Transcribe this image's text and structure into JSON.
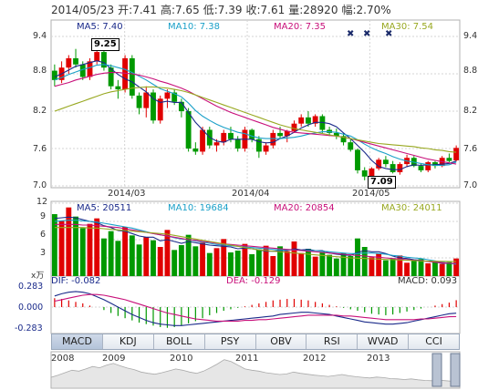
{
  "header": {
    "date": "2014/05/23",
    "open": "开:7.41",
    "high": "高:7.65",
    "low": "低:7.39",
    "close": "收:7.61",
    "volume": "量:28920",
    "change": "幅:2.70%"
  },
  "ma_price": {
    "ma5": "MA5: 7.40",
    "ma10": "MA10: 7.38",
    "ma20": "MA20: 7.35",
    "ma30": "MA30: 7.54"
  },
  "ma_volume": {
    "ma5": "MA5: 20511",
    "ma10": "MA10: 19684",
    "ma20": "MA20: 20854",
    "ma30": "MA30: 24011"
  },
  "macd_labels": {
    "dif": "DIF: -0.082",
    "dea": "DEA: -0.129",
    "macd": "MACD: 0.093"
  },
  "price_axis": {
    "ticks": [
      "9.4",
      "8.8",
      "8.2",
      "7.6",
      "7.0"
    ]
  },
  "volume_axis": {
    "ticks": [
      "12",
      "9",
      "6",
      "3"
    ],
    "unit": "x万"
  },
  "macd_axis": {
    "ticks": [
      "0.283",
      "0.000",
      "-0.283"
    ]
  },
  "date_axis": {
    "ticks": [
      "2014/03",
      "2014/04",
      "2014/05"
    ]
  },
  "price_markers": {
    "high": "9.25",
    "low": "7.09"
  },
  "tabs": [
    "MACD",
    "KDJ",
    "BOLL",
    "PSY",
    "OBV",
    "RSI",
    "WVAD",
    "CCI"
  ],
  "active_tab": "MACD",
  "overview_years": [
    "2008",
    "2009",
    "2010",
    "2011",
    "2012",
    "2013"
  ],
  "colors": {
    "up": "#e00000",
    "down": "#009900",
    "ma5": "#1a2a8a",
    "ma10": "#1aa0c8",
    "ma20": "#c8107a",
    "ma30": "#98a820",
    "grid": "#d5d5d5"
  },
  "chart_data": {
    "type": "candlestick",
    "ohlc": [
      [
        8.85,
        8.95,
        8.6,
        8.7
      ],
      [
        8.7,
        9.0,
        8.65,
        8.9
      ],
      [
        8.9,
        9.1,
        8.8,
        9.05
      ],
      [
        9.05,
        9.2,
        8.9,
        8.95
      ],
      [
        8.95,
        9.0,
        8.7,
        8.75
      ],
      [
        8.75,
        9.05,
        8.7,
        9.0
      ],
      [
        9.0,
        9.25,
        8.95,
        9.15
      ],
      [
        9.15,
        9.2,
        8.85,
        8.9
      ],
      [
        8.9,
        8.95,
        8.55,
        8.6
      ],
      [
        8.6,
        8.7,
        8.4,
        8.55
      ],
      [
        8.55,
        9.1,
        8.5,
        9.05
      ],
      [
        9.05,
        9.1,
        8.4,
        8.45
      ],
      [
        8.45,
        8.5,
        8.15,
        8.25
      ],
      [
        8.25,
        8.6,
        8.1,
        8.5
      ],
      [
        8.5,
        8.55,
        8.0,
        8.05
      ],
      [
        8.05,
        8.45,
        8.0,
        8.4
      ],
      [
        8.4,
        8.55,
        8.25,
        8.5
      ],
      [
        8.5,
        8.55,
        8.3,
        8.35
      ],
      [
        8.35,
        8.4,
        8.1,
        8.2
      ],
      [
        8.2,
        8.25,
        7.55,
        7.6
      ],
      [
        7.6,
        7.7,
        7.5,
        7.55
      ],
      [
        7.55,
        7.95,
        7.5,
        7.9
      ],
      [
        7.9,
        7.95,
        7.6,
        7.65
      ],
      [
        7.65,
        7.75,
        7.55,
        7.7
      ],
      [
        7.7,
        7.9,
        7.65,
        7.85
      ],
      [
        7.85,
        7.95,
        7.7,
        7.75
      ],
      [
        7.75,
        7.8,
        7.55,
        7.6
      ],
      [
        7.6,
        7.95,
        7.55,
        7.9
      ],
      [
        7.9,
        7.92,
        7.7,
        7.75
      ],
      [
        7.75,
        7.8,
        7.45,
        7.55
      ],
      [
        7.55,
        7.7,
        7.5,
        7.65
      ],
      [
        7.65,
        7.9,
        7.6,
        7.85
      ],
      [
        7.85,
        7.95,
        7.75,
        7.8
      ],
      [
        7.8,
        7.9,
        7.7,
        7.88
      ],
      [
        7.88,
        8.05,
        7.85,
        8.0
      ],
      [
        8.0,
        8.15,
        7.95,
        8.1
      ],
      [
        8.1,
        8.2,
        7.95,
        8.0
      ],
      [
        8.0,
        8.15,
        7.95,
        8.12
      ],
      [
        8.12,
        8.15,
        7.85,
        7.9
      ],
      [
        7.9,
        7.95,
        7.8,
        7.85
      ],
      [
        7.85,
        7.92,
        7.75,
        7.8
      ],
      [
        7.8,
        7.85,
        7.65,
        7.7
      ],
      [
        7.7,
        7.75,
        7.55,
        7.58
      ],
      [
        7.58,
        7.6,
        7.2,
        7.25
      ],
      [
        7.25,
        7.3,
        7.09,
        7.15
      ],
      [
        7.15,
        7.3,
        7.1,
        7.28
      ],
      [
        7.28,
        7.45,
        7.25,
        7.42
      ],
      [
        7.42,
        7.48,
        7.3,
        7.35
      ],
      [
        7.35,
        7.4,
        7.2,
        7.22
      ],
      [
        7.22,
        7.38,
        7.18,
        7.35
      ],
      [
        7.35,
        7.5,
        7.3,
        7.45
      ],
      [
        7.45,
        7.48,
        7.3,
        7.32
      ],
      [
        7.32,
        7.36,
        7.22,
        7.25
      ],
      [
        7.25,
        7.4,
        7.22,
        7.38
      ],
      [
        7.38,
        7.4,
        7.28,
        7.32
      ],
      [
        7.32,
        7.48,
        7.3,
        7.45
      ],
      [
        7.45,
        7.52,
        7.38,
        7.4
      ],
      [
        7.41,
        7.65,
        7.39,
        7.61
      ]
    ],
    "ma5": [
      8.75,
      8.8,
      8.86,
      8.92,
      8.95,
      8.98,
      9.01,
      8.98,
      8.88,
      8.79,
      8.72,
      8.67,
      8.59,
      8.51,
      8.4,
      8.34,
      8.36,
      8.34,
      8.34,
      8.18,
      8.02,
      7.9,
      7.78,
      7.72,
      7.7,
      7.75,
      7.75,
      7.75,
      7.75,
      7.71,
      7.69,
      7.7,
      7.76,
      7.8,
      7.86,
      7.93,
      7.98,
      8.02,
      8.02,
      8.0,
      7.95,
      7.85,
      7.76,
      7.65,
      7.54,
      7.41,
      7.31,
      7.28,
      7.26,
      7.26,
      7.31,
      7.34,
      7.33,
      7.34,
      7.34,
      7.35,
      7.36,
      7.4
    ],
    "ma10": [
      8.7,
      8.74,
      8.79,
      8.83,
      8.87,
      8.9,
      8.94,
      8.95,
      8.93,
      8.9,
      8.87,
      8.82,
      8.76,
      8.7,
      8.63,
      8.56,
      8.52,
      8.48,
      8.43,
      8.33,
      8.21,
      8.12,
      8.05,
      7.99,
      7.94,
      7.9,
      7.86,
      7.84,
      7.8,
      7.77,
      7.76,
      7.76,
      7.76,
      7.77,
      7.78,
      7.8,
      7.83,
      7.85,
      7.87,
      7.87,
      7.86,
      7.83,
      7.8,
      7.74,
      7.67,
      7.61,
      7.56,
      7.52,
      7.47,
      7.43,
      7.4,
      7.38,
      7.36,
      7.34,
      7.33,
      7.33,
      7.34,
      7.38
    ],
    "ma20": [
      8.6,
      8.63,
      8.66,
      8.7,
      8.73,
      8.76,
      8.79,
      8.81,
      8.82,
      8.82,
      8.81,
      8.8,
      8.78,
      8.75,
      8.72,
      8.68,
      8.65,
      8.61,
      8.57,
      8.52,
      8.46,
      8.4,
      8.34,
      8.28,
      8.23,
      8.18,
      8.14,
      8.1,
      8.06,
      8.02,
      7.98,
      7.94,
      7.91,
      7.88,
      7.86,
      7.85,
      7.84,
      7.83,
      7.82,
      7.81,
      7.8,
      7.78,
      7.76,
      7.73,
      7.7,
      7.67,
      7.64,
      7.61,
      7.58,
      7.55,
      7.52,
      7.49,
      7.46,
      7.43,
      7.41,
      7.39,
      7.37,
      7.35
    ],
    "ma30": [
      8.2,
      8.24,
      8.28,
      8.32,
      8.36,
      8.4,
      8.44,
      8.48,
      8.51,
      8.53,
      8.55,
      8.57,
      8.58,
      8.59,
      8.59,
      8.58,
      8.57,
      8.55,
      8.53,
      8.5,
      8.46,
      8.42,
      8.38,
      8.34,
      8.3,
      8.26,
      8.22,
      8.18,
      8.14,
      8.1,
      8.06,
      8.02,
      7.98,
      7.95,
      7.92,
      7.9,
      7.88,
      7.86,
      7.84,
      7.82,
      7.8,
      7.78,
      7.76,
      7.74,
      7.72,
      7.7,
      7.68,
      7.67,
      7.66,
      7.65,
      7.64,
      7.63,
      7.61,
      7.6,
      7.58,
      7.57,
      7.55,
      7.54
    ],
    "volume": [
      10.2,
      9.1,
      11.3,
      9.8,
      7.9,
      8.6,
      9.5,
      6.2,
      7.4,
      5.8,
      8.1,
      6.7,
      5.2,
      6.4,
      5.9,
      4.8,
      7.6,
      4.3,
      5.1,
      6.8,
      4.9,
      5.5,
      3.8,
      4.6,
      6.1,
      3.9,
      4.2,
      5.3,
      3.6,
      4.4,
      5.0,
      3.3,
      4.9,
      4.1,
      5.7,
      3.8,
      4.5,
      3.2,
      4.0,
      3.5,
      2.9,
      3.8,
      3.3,
      6.2,
      4.8,
      3.1,
      3.7,
      2.6,
      2.9,
      3.4,
      2.2,
      2.5,
      2.8,
      2.1,
      2.4,
      2.0,
      2.3,
      2.9
    ],
    "vol_ma5": [
      9.5,
      9.6,
      9.7,
      9.6,
      9.3,
      9.0,
      8.8,
      8.3,
      8.0,
      7.5,
      7.4,
      7.0,
      6.6,
      6.4,
      6.4,
      5.8,
      6.0,
      5.7,
      5.4,
      5.7,
      5.5,
      5.3,
      5.1,
      5.0,
      4.9,
      4.8,
      4.5,
      4.6,
      4.5,
      4.3,
      4.1,
      4.1,
      4.2,
      4.2,
      4.5,
      4.3,
      4.4,
      4.2,
      4.2,
      3.8,
      3.6,
      3.5,
      3.4,
      3.9,
      4.2,
      4.0,
      4.0,
      3.7,
      3.3,
      3.0,
      2.9,
      2.7,
      2.6,
      2.4,
      2.3,
      2.1,
      2.1,
      2.05
    ],
    "vol_ma10": [
      9.0,
      9.1,
      9.2,
      9.2,
      9.1,
      9.0,
      8.9,
      8.7,
      8.5,
      8.3,
      8.1,
      7.9,
      7.6,
      7.3,
      7.0,
      6.8,
      6.6,
      6.3,
      6.1,
      6.0,
      5.8,
      5.6,
      5.4,
      5.2,
      5.1,
      5.0,
      4.9,
      4.8,
      4.7,
      4.6,
      4.5,
      4.4,
      4.3,
      4.3,
      4.3,
      4.2,
      4.2,
      4.2,
      4.1,
      4.0,
      3.9,
      3.8,
      3.7,
      3.7,
      3.8,
      3.8,
      3.7,
      3.6,
      3.4,
      3.3,
      3.1,
      3.0,
      2.9,
      2.7,
      2.5,
      2.3,
      2.1,
      1.97
    ],
    "vol_ma20": [
      8.5,
      8.5,
      8.5,
      8.5,
      8.4,
      8.4,
      8.3,
      8.2,
      8.1,
      8.0,
      7.8,
      7.6,
      7.4,
      7.2,
      7.0,
      6.8,
      6.6,
      6.4,
      6.2,
      6.0,
      5.9,
      5.7,
      5.6,
      5.4,
      5.3,
      5.2,
      5.1,
      5.0,
      4.9,
      4.8,
      4.7,
      4.6,
      4.5,
      4.4,
      4.3,
      4.2,
      4.1,
      4.0,
      3.9,
      3.8,
      3.7,
      3.6,
      3.5,
      3.4,
      3.3,
      3.2,
      3.1,
      3.0,
      2.9,
      2.8,
      2.7,
      2.6,
      2.5,
      2.4,
      2.3,
      2.2,
      2.1,
      2.09
    ],
    "vol_ma30": [
      8.0,
      8.0,
      8.0,
      8.0,
      8.0,
      7.9,
      7.9,
      7.8,
      7.7,
      7.6,
      7.5,
      7.4,
      7.3,
      7.2,
      7.1,
      7.0,
      6.9,
      6.7,
      6.5,
      6.3,
      6.1,
      5.9,
      5.7,
      5.5,
      5.3,
      5.1,
      4.9,
      4.7,
      4.5,
      4.3,
      4.2,
      4.1,
      4.0,
      3.9,
      3.8,
      3.7,
      3.6,
      3.5,
      3.4,
      3.3,
      3.2,
      3.1,
      3.0,
      2.95,
      2.9,
      2.85,
      2.8,
      2.75,
      2.7,
      2.65,
      2.6,
      2.55,
      2.5,
      2.48,
      2.45,
      2.43,
      2.41,
      2.4
    ],
    "macd_hist": [
      0.12,
      0.11,
      0.09,
      0.07,
      0.05,
      0.02,
      0.0,
      -0.04,
      -0.08,
      -0.12,
      -0.15,
      -0.18,
      -0.21,
      -0.23,
      -0.25,
      -0.27,
      -0.28,
      -0.27,
      -0.25,
      -0.22,
      -0.19,
      -0.15,
      -0.11,
      -0.08,
      -0.05,
      -0.03,
      -0.01,
      0.01,
      0.03,
      0.05,
      0.07,
      0.09,
      0.1,
      0.11,
      0.11,
      0.1,
      0.09,
      0.07,
      0.05,
      0.03,
      0.01,
      -0.01,
      -0.03,
      -0.05,
      -0.07,
      -0.09,
      -0.1,
      -0.11,
      -0.1,
      -0.08,
      -0.06,
      -0.04,
      -0.02,
      0.0,
      0.02,
      0.04,
      0.06,
      0.093
    ],
    "dif": [
      0.15,
      0.18,
      0.2,
      0.21,
      0.2,
      0.18,
      0.14,
      0.1,
      0.05,
      0.0,
      -0.05,
      -0.1,
      -0.14,
      -0.18,
      -0.21,
      -0.23,
      -0.24,
      -0.25,
      -0.25,
      -0.24,
      -0.23,
      -0.22,
      -0.21,
      -0.2,
      -0.19,
      -0.18,
      -0.17,
      -0.16,
      -0.15,
      -0.14,
      -0.13,
      -0.12,
      -0.1,
      -0.09,
      -0.08,
      -0.07,
      -0.07,
      -0.08,
      -0.09,
      -0.1,
      -0.12,
      -0.14,
      -0.16,
      -0.18,
      -0.2,
      -0.21,
      -0.22,
      -0.23,
      -0.23,
      -0.22,
      -0.21,
      -0.19,
      -0.17,
      -0.15,
      -0.13,
      -0.11,
      -0.09,
      -0.082
    ],
    "dea": [
      0.08,
      0.1,
      0.12,
      0.14,
      0.16,
      0.17,
      0.17,
      0.16,
      0.14,
      0.12,
      0.1,
      0.07,
      0.04,
      0.01,
      -0.02,
      -0.05,
      -0.08,
      -0.1,
      -0.12,
      -0.14,
      -0.16,
      -0.17,
      -0.18,
      -0.19,
      -0.19,
      -0.19,
      -0.19,
      -0.18,
      -0.18,
      -0.17,
      -0.17,
      -0.16,
      -0.15,
      -0.14,
      -0.13,
      -0.12,
      -0.11,
      -0.11,
      -0.11,
      -0.11,
      -0.11,
      -0.12,
      -0.12,
      -0.13,
      -0.14,
      -0.15,
      -0.16,
      -0.17,
      -0.17,
      -0.17,
      -0.17,
      -0.17,
      -0.16,
      -0.16,
      -0.15,
      -0.14,
      -0.13,
      -0.129
    ],
    "overview": [
      0.35,
      0.42,
      0.5,
      0.58,
      0.55,
      0.62,
      0.7,
      0.66,
      0.74,
      0.8,
      0.72,
      0.65,
      0.6,
      0.52,
      0.48,
      0.45,
      0.5,
      0.56,
      0.62,
      0.58,
      0.52,
      0.48,
      0.55,
      0.66,
      0.78,
      0.92,
      0.86,
      0.74,
      0.62,
      0.58,
      0.55,
      0.5,
      0.47,
      0.44,
      0.46,
      0.52,
      0.48,
      0.45,
      0.42,
      0.4,
      0.38,
      0.41,
      0.44,
      0.4,
      0.37,
      0.35,
      0.33,
      0.36,
      0.34,
      0.31,
      0.3,
      0.28,
      0.3,
      0.27,
      0.25,
      0.24,
      0.26,
      0.24,
      0.22,
      0.2
    ]
  }
}
